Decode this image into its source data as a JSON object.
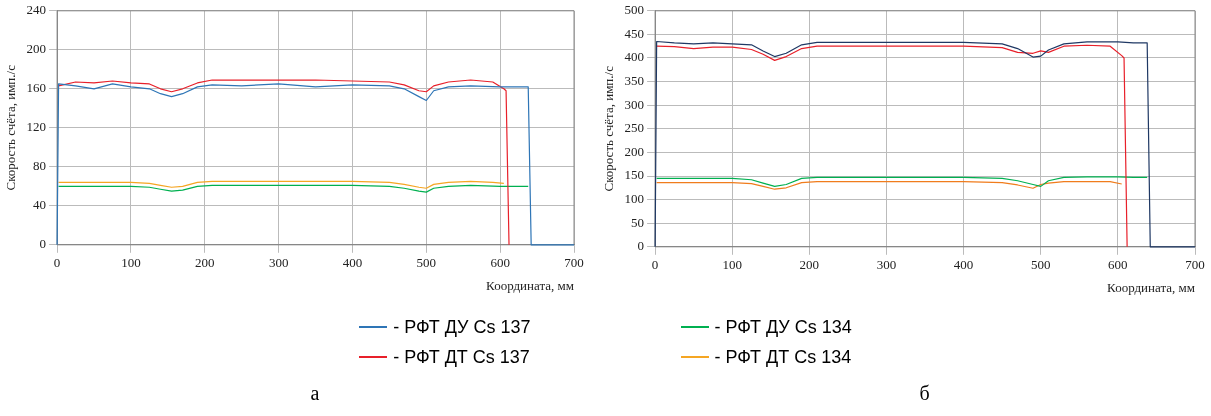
{
  "chart_data": [
    {
      "type": "line",
      "xlabel": "Координата, мм",
      "ylabel": "Скорость счёта, имп./с",
      "annotations": [
        "а"
      ],
      "xlim": [
        0,
        700
      ],
      "xticks": [
        0,
        100,
        200,
        300,
        400,
        500,
        600,
        700
      ],
      "ylim": [
        0,
        240
      ],
      "yticks": [
        0,
        40,
        80,
        120,
        160,
        200,
        240
      ],
      "grid": true,
      "legend": "bottom",
      "marker": "none",
      "line_style": "solid",
      "series": [
        {
          "name": "- РФТ ДУ Cs 137",
          "color": "#2e75b6",
          "x": [
            0,
            2,
            25,
            50,
            75,
            100,
            125,
            140,
            155,
            170,
            190,
            210,
            250,
            300,
            350,
            400,
            450,
            470,
            490,
            500,
            510,
            530,
            560,
            600,
            620,
            638,
            642,
            700
          ],
          "values": [
            0,
            165,
            163,
            160,
            165,
            162,
            160,
            155,
            152,
            155,
            162,
            164,
            163,
            165,
            162,
            164,
            163,
            160,
            152,
            148,
            158,
            162,
            163,
            162,
            162,
            162,
            0,
            0
          ]
        },
        {
          "name": "- РФТ ДТ Cs 137",
          "color": "#e8202a",
          "x": [
            2,
            25,
            50,
            75,
            100,
            125,
            140,
            155,
            170,
            190,
            210,
            250,
            300,
            350,
            400,
            450,
            470,
            490,
            500,
            510,
            530,
            560,
            590,
            605,
            608,
            612
          ],
          "values": [
            163,
            167,
            166,
            168,
            166,
            165,
            160,
            157,
            160,
            166,
            169,
            169,
            169,
            169,
            168,
            167,
            164,
            158,
            157,
            163,
            167,
            169,
            167,
            160,
            158,
            0
          ]
        },
        {
          "name": "- РФТ ДУ Cs 134",
          "color": "#00b050",
          "x": [
            2,
            25,
            50,
            75,
            100,
            125,
            140,
            155,
            170,
            190,
            210,
            250,
            300,
            350,
            400,
            450,
            470,
            490,
            500,
            510,
            530,
            560,
            600,
            620,
            638
          ],
          "values": [
            60,
            60,
            60,
            60,
            60,
            59,
            57,
            55,
            56,
            60,
            61,
            61,
            61,
            61,
            61,
            60,
            58,
            55,
            54,
            58,
            60,
            61,
            60,
            60,
            60
          ]
        },
        {
          "name": "- РФТ ДТ Cs 134",
          "color": "#f5a623",
          "x": [
            2,
            25,
            50,
            75,
            100,
            125,
            140,
            155,
            170,
            190,
            210,
            250,
            300,
            350,
            400,
            450,
            470,
            490,
            500,
            510,
            530,
            560,
            590,
            605
          ],
          "values": [
            64,
            64,
            64,
            64,
            64,
            63,
            61,
            59,
            60,
            64,
            65,
            65,
            65,
            65,
            65,
            64,
            62,
            59,
            58,
            62,
            64,
            65,
            64,
            63
          ]
        }
      ]
    },
    {
      "type": "line",
      "xlabel": "Координата, мм",
      "ylabel": "Скорость счёта, имп./с",
      "annotations": [
        "б"
      ],
      "xlim": [
        0,
        700
      ],
      "xticks": [
        0,
        100,
        200,
        300,
        400,
        500,
        600,
        700
      ],
      "ylim": [
        0,
        500
      ],
      "yticks": [
        0,
        50,
        100,
        150,
        200,
        250,
        300,
        350,
        400,
        450,
        500
      ],
      "grid": true,
      "marker": "none",
      "line_style": "solid",
      "series": [
        {
          "color": "#1f3864",
          "x": [
            0,
            2,
            25,
            50,
            75,
            100,
            125,
            140,
            155,
            170,
            190,
            210,
            250,
            300,
            350,
            400,
            450,
            470,
            490,
            500,
            510,
            530,
            560,
            600,
            620,
            638,
            642,
            700
          ],
          "values": [
            0,
            435,
            432,
            430,
            432,
            430,
            428,
            415,
            403,
            410,
            428,
            433,
            433,
            433,
            433,
            433,
            430,
            420,
            402,
            404,
            417,
            430,
            434,
            434,
            432,
            432,
            0,
            0
          ]
        },
        {
          "color": "#e8202a",
          "x": [
            2,
            25,
            50,
            75,
            100,
            125,
            140,
            155,
            170,
            190,
            210,
            250,
            300,
            350,
            400,
            450,
            470,
            490,
            500,
            510,
            530,
            560,
            590,
            605,
            608,
            612
          ],
          "values": [
            425,
            424,
            420,
            423,
            423,
            418,
            408,
            395,
            403,
            420,
            425,
            425,
            425,
            425,
            425,
            422,
            412,
            410,
            415,
            412,
            425,
            427,
            425,
            405,
            400,
            0
          ]
        },
        {
          "color": "#00b050",
          "x": [
            2,
            25,
            50,
            75,
            100,
            125,
            140,
            155,
            170,
            190,
            210,
            250,
            300,
            350,
            400,
            450,
            470,
            490,
            500,
            510,
            530,
            560,
            600,
            620,
            638
          ],
          "values": [
            145,
            145,
            145,
            145,
            145,
            142,
            135,
            128,
            132,
            145,
            147,
            147,
            147,
            147,
            147,
            145,
            140,
            132,
            128,
            140,
            147,
            148,
            148,
            147,
            147
          ]
        },
        {
          "color": "#f07c1c",
          "x": [
            2,
            25,
            50,
            75,
            100,
            125,
            140,
            155,
            170,
            190,
            210,
            250,
            300,
            350,
            400,
            450,
            470,
            490,
            500,
            510,
            530,
            560,
            590,
            605
          ],
          "values": [
            136,
            136,
            136,
            136,
            136,
            134,
            128,
            122,
            125,
            136,
            138,
            138,
            138,
            138,
            138,
            136,
            131,
            124,
            132,
            135,
            138,
            138,
            138,
            133
          ]
        }
      ]
    }
  ]
}
